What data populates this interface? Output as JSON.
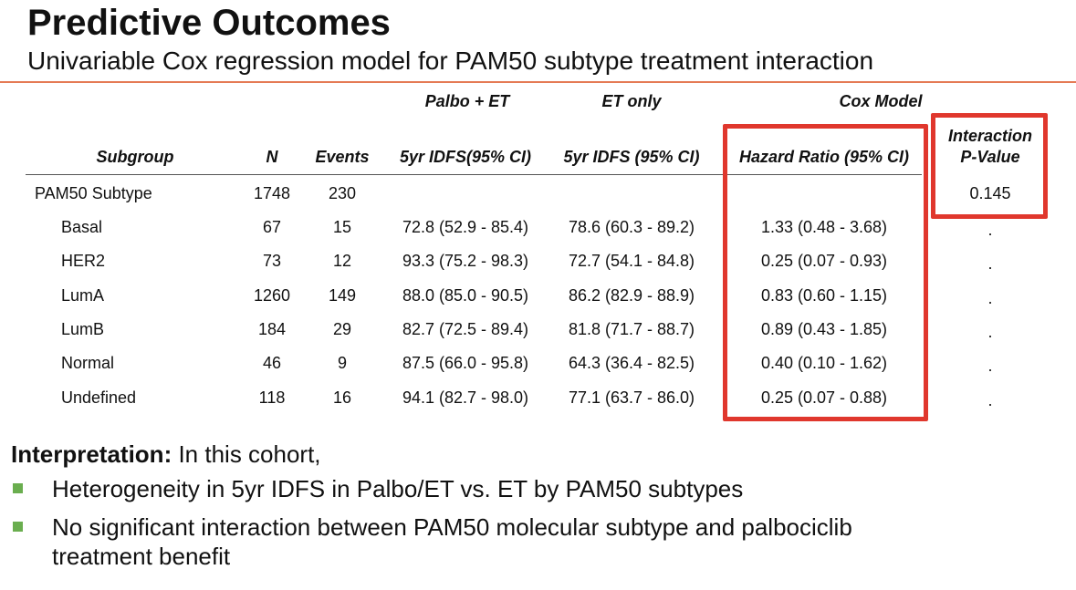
{
  "title": "Predictive Outcomes",
  "subtitle": "Univariable Cox regression model for PAM50 subtype treatment interaction",
  "table": {
    "group_headers": {
      "palbo": "Palbo + ET",
      "et": "ET only",
      "cox": "Cox Model"
    },
    "columns": {
      "subgroup": "Subgroup",
      "n": "N",
      "events": "Events",
      "idfs_palbo": "5yr IDFS(95% CI)",
      "idfs_et": "5yr IDFS (95% CI)",
      "hr": "Hazard Ratio (95% CI)",
      "pvalue_line1": "Interaction",
      "pvalue_line2": "P-Value"
    },
    "rows": [
      {
        "subgroup": "PAM50 Subtype",
        "n": "1748",
        "events": "230",
        "idfs_palbo": "",
        "idfs_et": "",
        "hr": "",
        "p": "0.145"
      },
      {
        "subgroup": "Basal",
        "n": "67",
        "events": "15",
        "idfs_palbo": "72.8 (52.9 - 85.4)",
        "idfs_et": "78.6 (60.3 - 89.2)",
        "hr": "1.33 (0.48 - 3.68)",
        "p": "."
      },
      {
        "subgroup": "HER2",
        "n": "73",
        "events": "12",
        "idfs_palbo": "93.3 (75.2 - 98.3)",
        "idfs_et": "72.7 (54.1 - 84.8)",
        "hr": "0.25 (0.07 - 0.93)",
        "p": "."
      },
      {
        "subgroup": "LumA",
        "n": "1260",
        "events": "149",
        "idfs_palbo": "88.0 (85.0 - 90.5)",
        "idfs_et": "86.2 (82.9 - 88.9)",
        "hr": "0.83 (0.60 - 1.15)",
        "p": "."
      },
      {
        "subgroup": "LumB",
        "n": "184",
        "events": "29",
        "idfs_palbo": "82.7 (72.5 - 89.4)",
        "idfs_et": "81.8 (71.7 - 88.7)",
        "hr": "0.89 (0.43 - 1.85)",
        "p": "."
      },
      {
        "subgroup": "Normal",
        "n": "46",
        "events": "9",
        "idfs_palbo": "87.5 (66.0 - 95.8)",
        "idfs_et": "64.3 (36.4 - 82.5)",
        "hr": "0.40 (0.10 - 1.62)",
        "p": "."
      },
      {
        "subgroup": "Undefined",
        "n": "118",
        "events": "16",
        "idfs_palbo": "94.1 (82.7 - 98.0)",
        "idfs_et": "77.1 (63.7 - 86.0)",
        "hr": "0.25 (0.07 - 0.88)",
        "p": "."
      }
    ]
  },
  "interpretation": {
    "label": "Interpretation:",
    "text": " In this cohort,",
    "bullets": [
      "Heterogeneity in 5yr IDFS in Palbo/ET vs. ET by PAM50 subtypes",
      "No significant interaction between PAM50 molecular subtype and palbociclib",
      "treatment benefit"
    ]
  },
  "colors": {
    "accent_rule": "#e57a55",
    "highlight_box": "#e0372d",
    "bullet": "#6aae4f"
  }
}
